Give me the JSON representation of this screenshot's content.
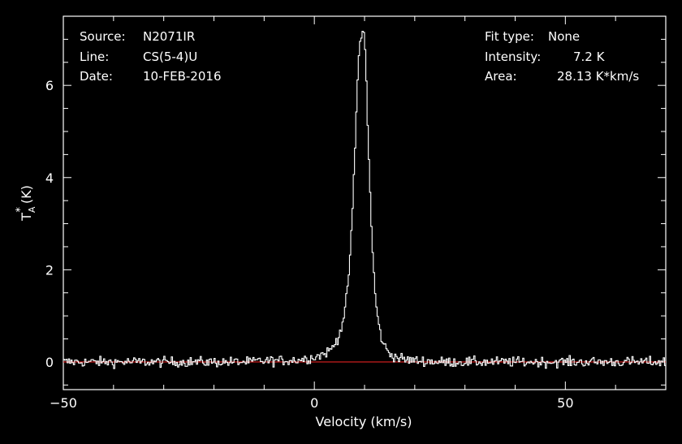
{
  "header_left": {
    "source_label": "Source:",
    "source_value": "N2071IR",
    "line_label": "Line:",
    "line_value": "CS(5-4)U",
    "date_label": "Date:",
    "date_value": "10-FEB-2016"
  },
  "header_right": {
    "fit_label": "Fit type:",
    "fit_value": "None",
    "intensity_label": "Intensity:",
    "intensity_value": "7.2 K",
    "area_label": "Area:",
    "area_value": "28.13 K*km/s"
  },
  "colors": {
    "background": "#000000",
    "spectrum": "#ffffff",
    "baseline": "#e02020",
    "axes": "#ffffff"
  },
  "chart_data": {
    "type": "line",
    "style": "histogram-step",
    "xlabel": "Velocity (km/s)",
    "ylabel_main": "T",
    "ylabel_sup": "*",
    "ylabel_sub": "A",
    "ylabel_unit": "(K)",
    "xlim": [
      -50,
      70
    ],
    "ylim": [
      -0.6,
      7.5
    ],
    "xticks": [
      -50,
      0,
      50
    ],
    "xtick_labels": [
      "−50",
      "0",
      "50"
    ],
    "yticks": [
      0,
      2,
      4,
      6
    ],
    "ytick_labels": [
      "0",
      "2",
      "4",
      "6"
    ],
    "baseline_y": 0,
    "peak_velocity": 9.8,
    "peak_temperature": 7.2,
    "series": [
      {
        "x": [
          -12,
          -6,
          -3,
          -1,
          0,
          1,
          2,
          3,
          3.5,
          4,
          4.5,
          5,
          5.5,
          6,
          6.5,
          7,
          7.5,
          8,
          8.5,
          9,
          9.5,
          9.8,
          10.2,
          10.5,
          11,
          11.5,
          12,
          12.5,
          13,
          13.5,
          14,
          14.5,
          15,
          15.5,
          16,
          17,
          18,
          20,
          24
        ],
        "y": [
          0.02,
          0.03,
          0.05,
          0.08,
          0.11,
          0.14,
          0.18,
          0.24,
          0.3,
          0.38,
          0.48,
          0.62,
          0.8,
          1.05,
          1.45,
          2.1,
          3.0,
          4.3,
          5.8,
          6.9,
          7.15,
          7.2,
          6.7,
          5.6,
          4.0,
          2.6,
          1.65,
          1.05,
          0.7,
          0.48,
          0.34,
          0.25,
          0.19,
          0.15,
          0.12,
          0.08,
          0.05,
          0.03,
          0.01
        ]
      }
    ]
  }
}
